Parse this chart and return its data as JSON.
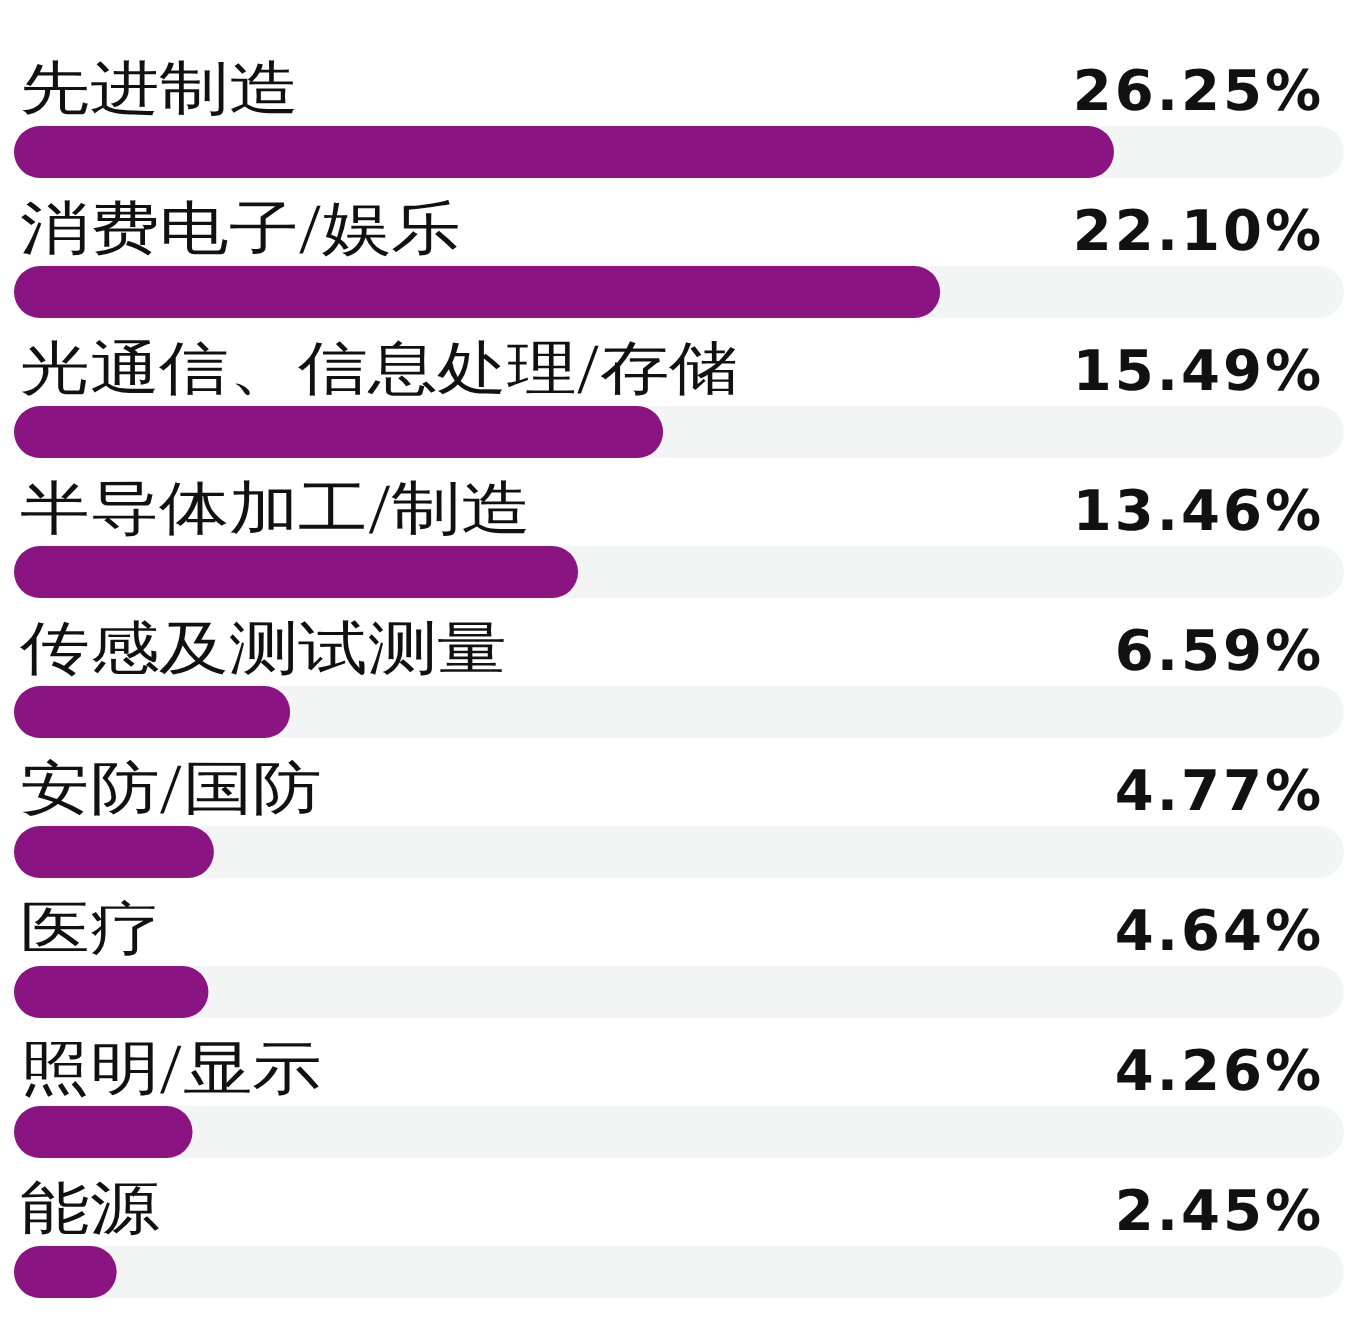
{
  "chart_data": {
    "type": "bar",
    "orientation": "horizontal",
    "tick_labels": "y",
    "categories": [
      "先进制造",
      "消费电子/娱乐",
      "光通信、信息处理/存储",
      "半导体加工/制造",
      "传感及测试测量",
      "安防/国防",
      "医疗",
      "照明/显示",
      "能源"
    ],
    "values": [
      26.25,
      22.1,
      15.49,
      13.46,
      6.59,
      4.77,
      4.64,
      4.26,
      2.45
    ],
    "value_labels": [
      "26.25%",
      "22.10%",
      "15.49%",
      "13.46%",
      "6.59%",
      "4.77%",
      "4.64%",
      "4.26%",
      "2.45%"
    ],
    "color": "#8a1482"
  }
}
